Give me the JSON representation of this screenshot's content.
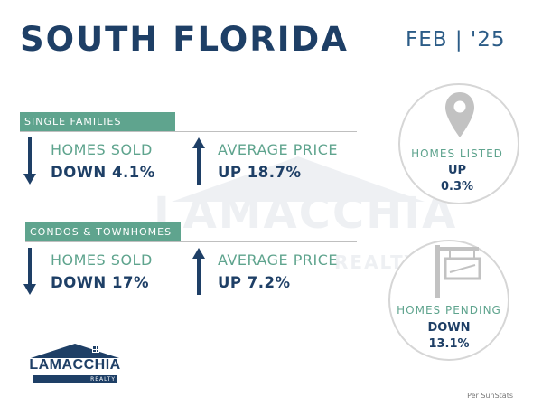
{
  "header": {
    "title": "SOUTH FLORIDA",
    "date": "FEB | '25"
  },
  "watermark": {
    "text": "LAMACCHIA",
    "sub": "REALTY"
  },
  "single_families": {
    "band": "SINGLE FAMILIES",
    "homes_sold": {
      "label": "HOMES SOLD",
      "value": "DOWN 4.1%",
      "direction": "down"
    },
    "average_price": {
      "label": "AVERAGE PRICE",
      "value": "UP 18.7%",
      "direction": "up"
    }
  },
  "condos": {
    "band": "CONDOS & TOWNHOMES",
    "homes_sold": {
      "label": "HOMES SOLD",
      "value": "DOWN 17%",
      "direction": "down"
    },
    "average_price": {
      "label": "AVERAGE PRICE",
      "value": "UP 7.2%",
      "direction": "up"
    }
  },
  "homes_listed": {
    "icon": "map-pin-icon",
    "label": "HOMES LISTED",
    "direction": "UP",
    "value": "0.3%"
  },
  "homes_pending": {
    "icon": "for-sale-sign-icon",
    "label": "HOMES PENDING",
    "direction": "DOWN",
    "value": "13.1%"
  },
  "logo": {
    "name": "LAMACCHIA",
    "sub": "REALTY"
  },
  "source": "Per SunStats",
  "colors": {
    "navy": "#1e3f66",
    "green": "#5fa48e",
    "circle_border": "#d6d6d6",
    "icon_gray": "#c2c2c2"
  }
}
